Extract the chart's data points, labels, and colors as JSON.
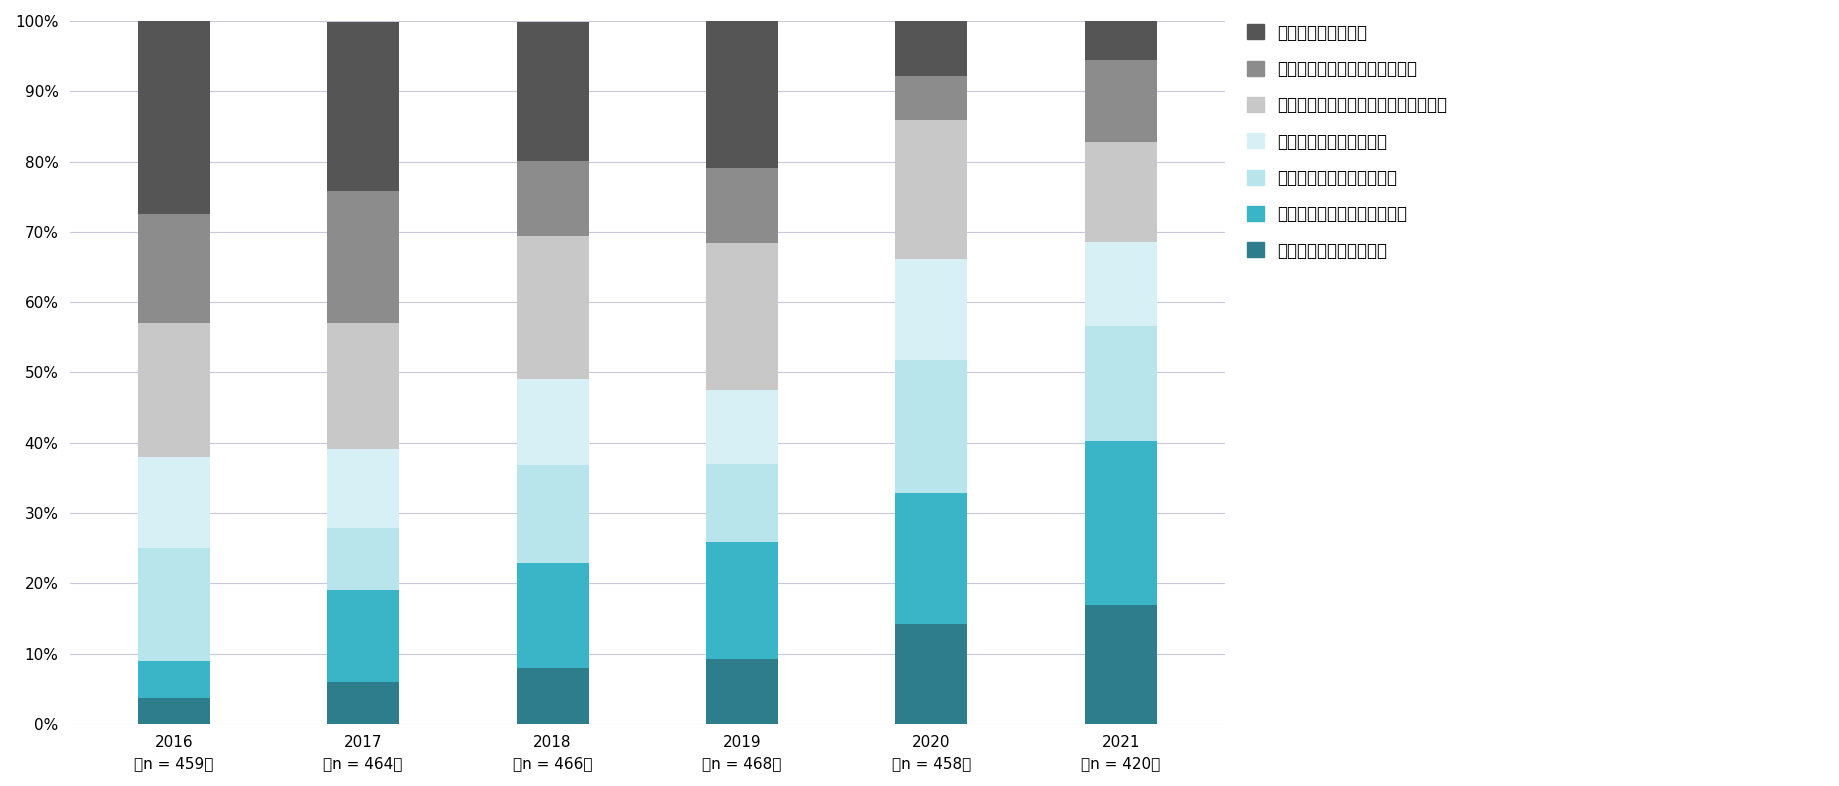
{
  "years": [
    "2016\n（n = 459）",
    "2017\n（n = 464）",
    "2018\n（n = 466）",
    "2019\n（n = 468）",
    "2020\n（n = 458）",
    "2021\n（n = 420）"
  ],
  "categories": [
    "本番環境で導入している",
    "導入構築／テスト／検証段階",
    "導入する計画／検討がある",
    "情報収集や勉強している",
    "現時点で導入することは考えていない",
    "今後どうしていくか分からない",
    "コンテナを知らない"
  ],
  "colors": [
    "#2e7d8c",
    "#3ab5c8",
    "#b8e4ec",
    "#d6f0f5",
    "#c8c8c8",
    "#8c8c8c",
    "#555555"
  ],
  "text_colors": [
    "#ffffff",
    "#ffffff",
    "#444444",
    "#444444",
    "#444444",
    "#ffffff",
    "#ffffff"
  ],
  "data": {
    "本番環境で導入している": [
      3.7,
      6.0,
      7.9,
      9.2,
      14.2,
      16.9
    ],
    "導入構築／テスト／検証段階": [
      5.2,
      13.1,
      15.0,
      16.7,
      18.6,
      23.3
    ],
    "導入する計画／検討がある": [
      16.1,
      8.8,
      13.9,
      11.1,
      19.0,
      16.4
    ],
    "情報収集や勉強している": [
      12.9,
      11.2,
      12.2,
      10.5,
      14.4,
      11.9
    ],
    "現時点で導入することは考えていない": [
      19.2,
      17.9,
      20.4,
      20.9,
      19.7,
      14.3
    ],
    "今後どうしていくか分からない": [
      15.5,
      18.8,
      10.7,
      10.7,
      6.3,
      11.7
    ],
    "コンテナを知らない": [
      27.5,
      24.1,
      19.7,
      20.9,
      7.9,
      5.5
    ]
  },
  "bar_width": 0.38,
  "ylim": [
    0,
    100
  ],
  "yticks": [
    0,
    10,
    20,
    30,
    40,
    50,
    60,
    70,
    80,
    90,
    100
  ],
  "ytick_labels": [
    "0%",
    "10%",
    "20%",
    "30%",
    "40%",
    "50%",
    "60%",
    "70%",
    "80%",
    "90%",
    "100%"
  ],
  "background_color": "#ffffff",
  "grid_color": "#c8c8dc",
  "font_size_bar": 10,
  "font_size_axis": 11,
  "font_size_legend": 12,
  "min_val_for_label": 3.5
}
